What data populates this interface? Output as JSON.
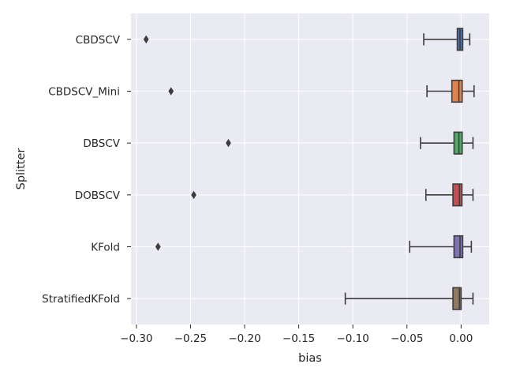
{
  "chart_data": {
    "type": "boxplot",
    "orientation": "horizontal",
    "xlabel": "bias",
    "ylabel": "Splitter",
    "xlim": [
      -0.305,
      0.026
    ],
    "xticks": [
      -0.3,
      -0.25,
      -0.2,
      -0.15,
      -0.1,
      -0.05,
      0.0
    ],
    "xtick_labels": [
      "−0.30",
      "−0.25",
      "−0.20",
      "−0.15",
      "−0.10",
      "−0.05",
      "0.00"
    ],
    "grid": true,
    "background": "#eaeaf2",
    "categories": [
      "CBDSCV",
      "CBDSCV_Mini",
      "DBSCV",
      "DOBSCV",
      "KFold",
      "StratifiedKFold"
    ],
    "boxes": [
      {
        "name": "CBDSCV",
        "whislo": -0.0345,
        "q1": -0.0035,
        "med": -0.001,
        "q3": 0.0015,
        "whishi": 0.008,
        "fliers": [
          -0.291
        ],
        "color": "#4c72b0"
      },
      {
        "name": "CBDSCV_Mini",
        "whislo": -0.0315,
        "q1": -0.0085,
        "med": -0.002,
        "q3": 0.001,
        "whishi": 0.012,
        "fliers": [
          -0.268
        ],
        "color": "#dd8452"
      },
      {
        "name": "DBSCV",
        "whislo": -0.0375,
        "q1": -0.0065,
        "med": -0.002,
        "q3": 0.001,
        "whishi": 0.011,
        "fliers": [
          -0.215
        ],
        "color": "#55a868"
      },
      {
        "name": "DOBSCV",
        "whislo": -0.0325,
        "q1": -0.0075,
        "med": -0.0015,
        "q3": 0.0008,
        "whishi": 0.011,
        "fliers": [
          -0.247
        ],
        "color": "#c44e52"
      },
      {
        "name": "KFold",
        "whislo": -0.0475,
        "q1": -0.0065,
        "med": -0.001,
        "q3": 0.0015,
        "whishi": 0.0095,
        "fliers": [
          -0.28
        ],
        "color": "#8172b3"
      },
      {
        "name": "StratifiedKFold",
        "whislo": -0.107,
        "q1": -0.0075,
        "med": -0.0015,
        "q3": 0.0,
        "whishi": 0.011,
        "fliers": [],
        "color": "#937860"
      }
    ]
  }
}
